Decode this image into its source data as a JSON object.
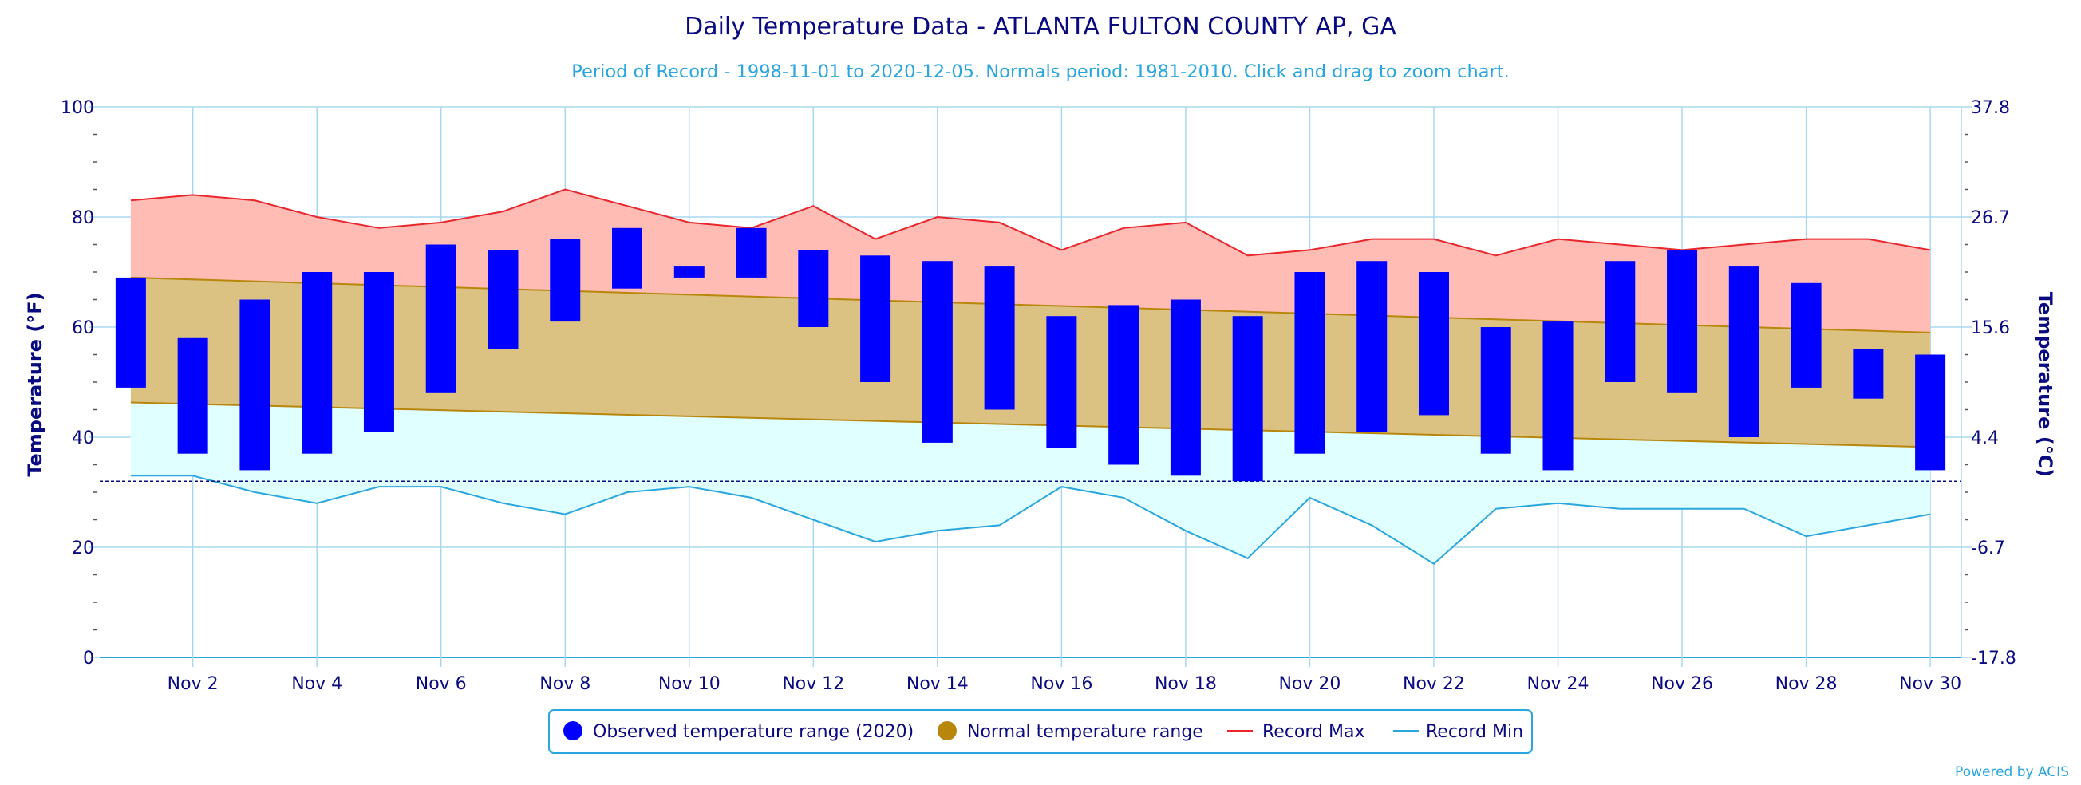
{
  "chart_data": {
    "type": "bar",
    "title": "Daily Temperature Data - ATLANTA FULTON COUNTY AP, GA",
    "subtitle": "Period of Record - 1998-11-01 to 2020-12-05. Normals period: 1981-2010. Click and drag to zoom chart.",
    "ylabel": "Temperature (°F)",
    "ylabel_right": "Temperature (°C)",
    "ylim": [
      0,
      100
    ],
    "y_ticks": [
      "0",
      "20",
      "40",
      "60",
      "80",
      "100"
    ],
    "y_ticks_right": [
      "-17.8",
      "-6.7",
      "4.4",
      "15.6",
      "26.7",
      "37.8"
    ],
    "x_ticks": [
      "Nov 2",
      "Nov 4",
      "Nov 6",
      "Nov 8",
      "Nov 10",
      "Nov 12",
      "Nov 14",
      "Nov 16",
      "Nov 18",
      "Nov 20",
      "Nov 22",
      "Nov 24",
      "Nov 26",
      "Nov 28",
      "Nov 30"
    ],
    "days": [
      1,
      2,
      3,
      4,
      5,
      6,
      7,
      8,
      9,
      10,
      11,
      12,
      13,
      14,
      15,
      16,
      17,
      18,
      19,
      20,
      21,
      22,
      23,
      24,
      25,
      26,
      27,
      28,
      29,
      30
    ],
    "freezing_line": 32,
    "grid": true,
    "legend_position": "bottom-center",
    "series": [
      {
        "name": "Observed temperature range (2020)",
        "type": "columnrange",
        "low": [
          49,
          37,
          34,
          37,
          41,
          48,
          56,
          61,
          67,
          69,
          69,
          60,
          50,
          39,
          45,
          38,
          35,
          33,
          32,
          37,
          41,
          44,
          37,
          34,
          50,
          48,
          40,
          49,
          47,
          34
        ],
        "high": [
          69,
          58,
          65,
          70,
          70,
          75,
          74,
          76,
          78,
          71,
          78,
          74,
          73,
          72,
          71,
          62,
          64,
          65,
          62,
          70,
          72,
          70,
          60,
          61,
          72,
          74,
          71,
          68,
          56,
          55
        ]
      },
      {
        "name": "Normal temperature range",
        "type": "arearange",
        "low_start": 46.3,
        "low_end": 38.2,
        "high_start": 69,
        "high_end": 59
      },
      {
        "name": "Record Max",
        "type": "line",
        "values": [
          83,
          84,
          83,
          80,
          78,
          79,
          81,
          85,
          82,
          79,
          78,
          82,
          76,
          80,
          79,
          74,
          78,
          79,
          73,
          74,
          76,
          76,
          73,
          76,
          75,
          74,
          75,
          76,
          76,
          74
        ]
      },
      {
        "name": "Record Min",
        "type": "line",
        "values": [
          33,
          33,
          30,
          28,
          31,
          31,
          28,
          26,
          30,
          31,
          29,
          25,
          21,
          23,
          24,
          31,
          29,
          23,
          18,
          29,
          24,
          17,
          27,
          28,
          27,
          27,
          27,
          22,
          24,
          26
        ]
      }
    ]
  },
  "legend": {
    "observed": "Observed temperature range (2020)",
    "normal": "Normal temperature range",
    "record_max": "Record Max",
    "record_min": "Record Min"
  },
  "credit": "Powered by ACIS",
  "colors": {
    "observed": "#0000ff",
    "normal_fill": "#dbc282",
    "normal_edge": "#b8860b",
    "record_max_fill": "#ffbcb5",
    "record_max_line": "#e8262b",
    "record_min_fill": "#e0ffff",
    "record_min_line": "#29a6dd",
    "freezing": "#0a0a80",
    "grid": "#a8d8f0",
    "text": "#0a0a80",
    "accent": "#29a6dd"
  },
  "icons": {
    "observed": "blue-circle-icon",
    "normal": "gold-circle-icon",
    "record_max": "red-line-icon",
    "record_min": "cyan-line-icon"
  }
}
